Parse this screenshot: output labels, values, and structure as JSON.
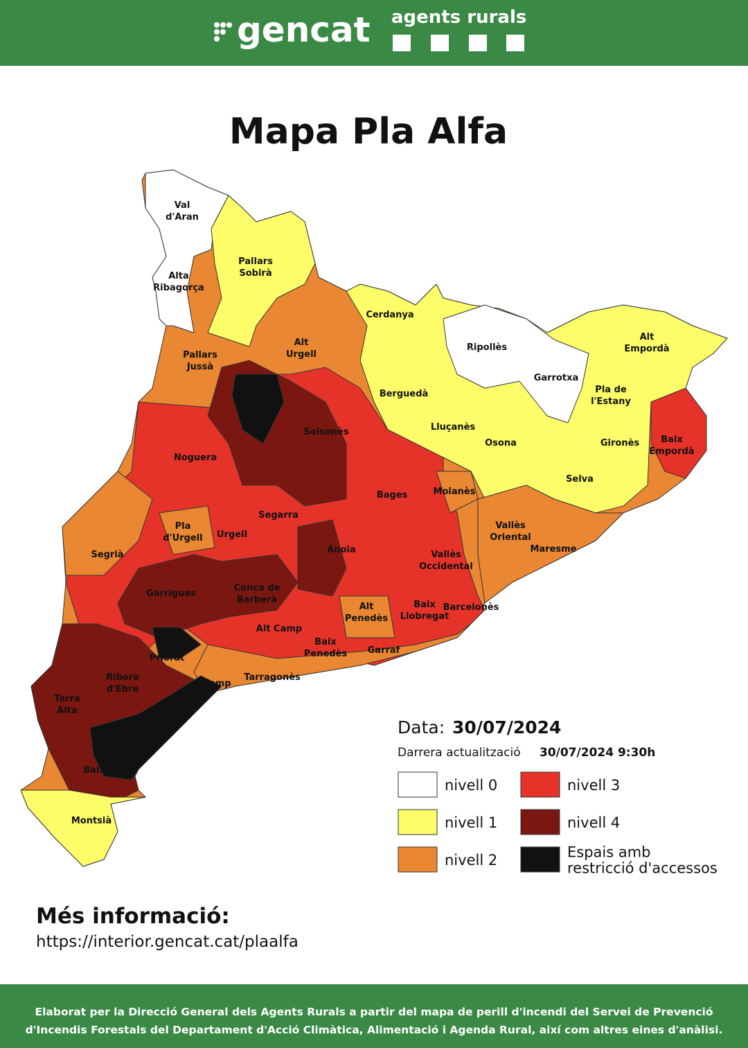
{
  "header": {
    "logo": "gencat",
    "brand": "agents rurals"
  },
  "title": "Mapa Pla Alfa",
  "map": {
    "labels": [
      {
        "lines": [
          "Val",
          "d'Aran"
        ]
      },
      {
        "lines": [
          "Alta",
          "Ribagorça"
        ]
      },
      {
        "lines": [
          "Pallars",
          "Sobirà"
        ]
      },
      {
        "lines": [
          "Pallars",
          "Jussà"
        ]
      },
      {
        "lines": [
          "Alt",
          "Urgell"
        ]
      },
      {
        "lines": [
          "Cerdanya"
        ]
      },
      {
        "lines": [
          "Ripollès"
        ]
      },
      {
        "lines": [
          "Alt",
          "Empordà"
        ]
      },
      {
        "lines": [
          "Garrotxa"
        ]
      },
      {
        "lines": [
          "Pla de",
          "l'Estany"
        ]
      },
      {
        "lines": [
          "Berguedà"
        ]
      },
      {
        "lines": [
          "Lluçanès"
        ]
      },
      {
        "lines": [
          "Osona"
        ]
      },
      {
        "lines": [
          "Gironès"
        ]
      },
      {
        "lines": [
          "Baix",
          "Empordà"
        ]
      },
      {
        "lines": [
          "Solsonès"
        ]
      },
      {
        "lines": [
          "Noguera"
        ]
      },
      {
        "lines": [
          "Selva"
        ]
      },
      {
        "lines": [
          "Bages"
        ]
      },
      {
        "lines": [
          "Moianès"
        ]
      },
      {
        "lines": [
          "Segarra"
        ]
      },
      {
        "lines": [
          "Pla",
          "d'Urgell"
        ]
      },
      {
        "lines": [
          "Urgell"
        ]
      },
      {
        "lines": [
          "Vallès",
          "Oriental"
        ]
      },
      {
        "lines": [
          "Maresme"
        ]
      },
      {
        "lines": [
          "Segrià"
        ]
      },
      {
        "lines": [
          "Anoia"
        ]
      },
      {
        "lines": [
          "Vallès",
          "Occidental"
        ]
      },
      {
        "lines": [
          "Garrigues"
        ]
      },
      {
        "lines": [
          "Conca de",
          "Barberà"
        ]
      },
      {
        "lines": [
          "Baix",
          "Llobregat"
        ]
      },
      {
        "lines": [
          "Barcelonès"
        ]
      },
      {
        "lines": [
          "Alt",
          "Penedès"
        ]
      },
      {
        "lines": [
          "Alt Camp"
        ]
      },
      {
        "lines": [
          "Priorat"
        ]
      },
      {
        "lines": [
          "Baix",
          "Penedès"
        ]
      },
      {
        "lines": [
          "Garraf"
        ]
      },
      {
        "lines": [
          "Ribera",
          "d'Ebre"
        ]
      },
      {
        "lines": [
          "Camp"
        ]
      },
      {
        "lines": [
          "Tarragonès"
        ]
      },
      {
        "lines": [
          "Terra",
          "Alta"
        ]
      },
      {
        "lines": [
          "Baix Ebre"
        ]
      },
      {
        "lines": [
          "Montsià"
        ]
      }
    ]
  },
  "legend": {
    "date_label": "Data:",
    "date": "30/07/2024",
    "update_label": "Darrera actualització",
    "update": "30/07/2024 9:30h",
    "items": [
      {
        "lines": [
          "nivell 0"
        ],
        "color": "#ffffff"
      },
      {
        "lines": [
          "nivell 1"
        ],
        "color": "#fdfd6a"
      },
      {
        "lines": [
          "nivell 2"
        ],
        "color": "#ea8733"
      },
      {
        "lines": [
          "nivell 3"
        ],
        "color": "#e5332a"
      },
      {
        "lines": [
          "nivell 4"
        ],
        "color": "#7b1711"
      },
      {
        "lines": [
          "Espais amb",
          "restricció d'accessos"
        ],
        "color": "#111111"
      }
    ]
  },
  "more_info": {
    "title": "Més informació:",
    "url": "https://interior.gencat.cat/plaalfa"
  },
  "footer": {
    "lines": [
      "Elaborat per la Direcció General dels Agents Rurals a partir del mapa de perill d'incendi del Servei de Prevenció",
      "d'Incendis Forestals del Departament d'Acció Climàtica, Alimentació i Agenda Rural, així com altres eines d'anàlisi."
    ]
  }
}
